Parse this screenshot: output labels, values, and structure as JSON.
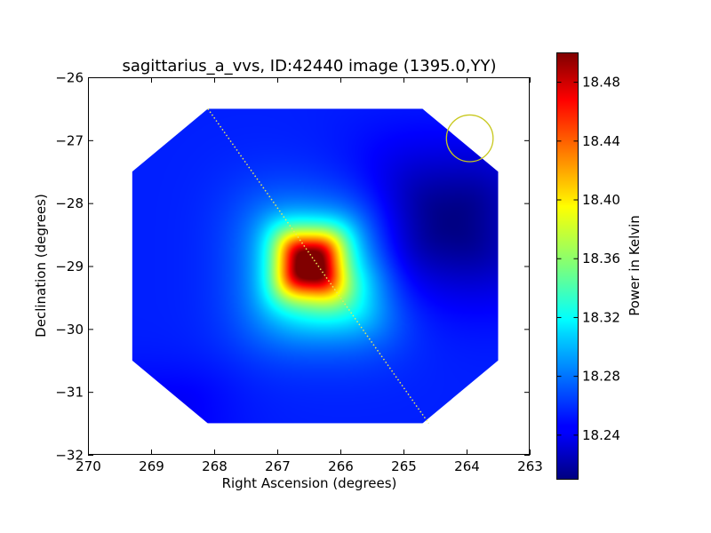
{
  "chart_data": {
    "type": "heatmap",
    "title": "sagittarius_a_vvs, ID:42440 image (1395.0,YY)",
    "xlabel": "Right Ascension (degrees)",
    "ylabel": "Declination (degrees)",
    "xlim": [
      270,
      263
    ],
    "ylim": [
      -32,
      -26
    ],
    "x_ticks": [
      {
        "value": 270,
        "label": "270"
      },
      {
        "value": 269,
        "label": "269"
      },
      {
        "value": 268,
        "label": "268"
      },
      {
        "value": 267,
        "label": "267"
      },
      {
        "value": 266,
        "label": "266"
      },
      {
        "value": 265,
        "label": "265"
      },
      {
        "value": 264,
        "label": "264"
      },
      {
        "value": 263,
        "label": "263"
      }
    ],
    "y_ticks": [
      {
        "value": -26,
        "label": "−26"
      },
      {
        "value": -27,
        "label": "−27"
      },
      {
        "value": -28,
        "label": "−28"
      },
      {
        "value": -29,
        "label": "−29"
      },
      {
        "value": -30,
        "label": "−30"
      },
      {
        "value": -31,
        "label": "−31"
      },
      {
        "value": -32,
        "label": "−32"
      }
    ],
    "colorbar": {
      "label": "Power in Kelvin",
      "colormap": "jet",
      "range": [
        18.21,
        18.5
      ],
      "ticks": [
        {
          "value": 18.24,
          "label": "18.24"
        },
        {
          "value": 18.28,
          "label": "18.28"
        },
        {
          "value": 18.32,
          "label": "18.32"
        },
        {
          "value": 18.36,
          "label": "18.36"
        },
        {
          "value": 18.4,
          "label": "18.40"
        },
        {
          "value": 18.44,
          "label": "18.44"
        },
        {
          "value": 18.48,
          "label": "18.48"
        }
      ]
    },
    "field_of_view_octagon": [
      [
        268.1,
        -26.5
      ],
      [
        264.7,
        -26.5
      ],
      [
        263.5,
        -27.5
      ],
      [
        263.5,
        -30.5
      ],
      [
        264.7,
        -31.5
      ],
      [
        268.1,
        -31.5
      ],
      [
        269.3,
        -30.5
      ],
      [
        269.3,
        -27.5
      ]
    ],
    "background_level": 18.255,
    "emission_components": [
      {
        "ra": 266.5,
        "dec": -28.95,
        "sigma_ra": 0.35,
        "sigma_dec": 0.35,
        "amplitude": 0.205
      },
      {
        "ra": 266.4,
        "dec": -29.05,
        "sigma_ra": 0.75,
        "sigma_dec": 0.75,
        "amplitude": 0.07
      },
      {
        "ra": 266.0,
        "dec": -29.5,
        "sigma_ra": 0.6,
        "sigma_dec": 0.45,
        "amplitude": 0.03
      },
      {
        "ra": 264.3,
        "dec": -28.3,
        "sigma_ra": 0.9,
        "sigma_dec": 0.8,
        "amplitude": -0.045
      },
      {
        "ra": 268.8,
        "dec": -31.3,
        "sigma_ra": 0.8,
        "sigma_dec": 0.5,
        "amplitude": -0.012
      }
    ],
    "dotted_line": {
      "start": [
        268.1,
        -26.5
      ],
      "end": [
        264.6,
        -31.5
      ],
      "color": "#e8e85a"
    },
    "circle_marker": {
      "ra": 263.95,
      "dec": -26.97,
      "radius_deg": 0.37,
      "color": "#c8c81e"
    },
    "grid": false
  }
}
